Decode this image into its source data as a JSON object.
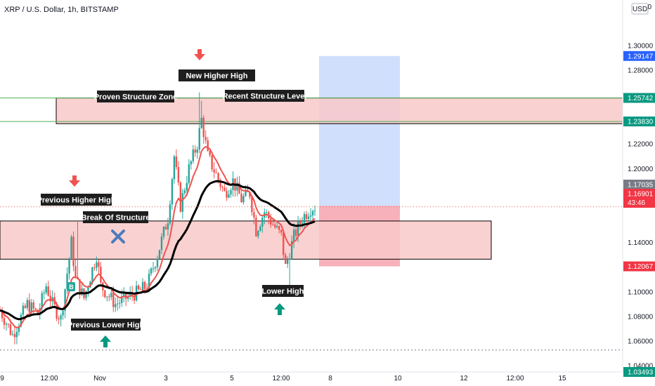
{
  "header": {
    "symbol_title": "XRP / U.S. Dollar, 1h, BITSTAMP",
    "currency_button": "USD",
    "corner_value": "0"
  },
  "colors": {
    "up": "#26a69a",
    "down": "#ef5350",
    "zone_fill": "#f9c9c9",
    "target_fill": "#c7d9fb",
    "stop_fill": "#f6a8b3",
    "ema": "#ef5350",
    "ma": "#000000",
    "label_bg": "#1e1e1e",
    "price_badge_blue": "#2962ff",
    "price_badge_green": "#089981",
    "price_badge_red": "#f23645",
    "price_badge_gray": "#787b86"
  },
  "chart_data": {
    "type": "candlestick",
    "x_ticks": [
      "9",
      "12:00",
      "Nov",
      "3",
      "5",
      "12:00",
      "8",
      "10",
      "12",
      "12:00",
      "15"
    ],
    "y_ticks": [
      "1.30000",
      "1.28000",
      "1.22000",
      "1.20000",
      "1.14000",
      "1.10000",
      "1.08000",
      "1.06000",
      "1.04000"
    ],
    "ylim": [
      1.025,
      1.335
    ],
    "price_badges": [
      {
        "value": "1.29147",
        "color": "blue"
      },
      {
        "value": "1.25742",
        "color": "green"
      },
      {
        "value": "1.23830",
        "color": "green"
      },
      {
        "value": "1.17035",
        "color": "gray"
      },
      {
        "value": "1.16901",
        "color": "red",
        "subtext": "43:46"
      },
      {
        "value": "1.12067",
        "color": "red"
      },
      {
        "value": "1.03493",
        "color": "green"
      }
    ],
    "zones": [
      {
        "name": "recent-structure-zone",
        "top": 1.2574,
        "bottom": 1.2365
      },
      {
        "name": "break-of-structure-zone",
        "top": 1.1575,
        "bottom": 1.1265
      }
    ],
    "position": {
      "target": 1.29147,
      "entry": 1.1698,
      "stop": 1.12067
    },
    "levels": [
      1.2574,
      1.2383,
      1.0527,
      1.03493
    ],
    "annotations": [
      "Proven Structure Zone",
      "Recent Structure Level",
      "New Higher High",
      "Previous Higher High",
      "Break Of Structure",
      "Previous Lower High",
      "Lower High"
    ],
    "anchors": [
      {
        "t": 0,
        "p": 1.085
      },
      {
        "t": 6,
        "p": 1.065
      },
      {
        "t": 13,
        "p": 1.09
      },
      {
        "t": 18,
        "p": 1.082
      },
      {
        "t": 22,
        "p": 1.105
      },
      {
        "t": 25,
        "p": 1.09
      },
      {
        "t": 29,
        "p": 1.078
      },
      {
        "t": 34,
        "p": 1.14
      },
      {
        "t": 36,
        "p": 1.11
      },
      {
        "t": 40,
        "p": 1.095
      },
      {
        "t": 46,
        "p": 1.13
      },
      {
        "t": 48,
        "p": 1.105
      },
      {
        "t": 55,
        "p": 1.09
      },
      {
        "t": 60,
        "p": 1.095
      },
      {
        "t": 66,
        "p": 1.1
      },
      {
        "t": 70,
        "p": 1.105
      },
      {
        "t": 75,
        "p": 1.13
      },
      {
        "t": 80,
        "p": 1.16
      },
      {
        "t": 83,
        "p": 1.21
      },
      {
        "t": 86,
        "p": 1.17
      },
      {
        "t": 90,
        "p": 1.2
      },
      {
        "t": 94,
        "p": 1.22
      },
      {
        "t": 96,
        "p": 1.24
      },
      {
        "t": 99,
        "p": 1.21
      },
      {
        "t": 103,
        "p": 1.195
      },
      {
        "t": 107,
        "p": 1.18
      },
      {
        "t": 111,
        "p": 1.19
      },
      {
        "t": 115,
        "p": 1.175
      },
      {
        "t": 119,
        "p": 1.18
      },
      {
        "t": 122,
        "p": 1.15
      },
      {
        "t": 126,
        "p": 1.165
      },
      {
        "t": 130,
        "p": 1.155
      },
      {
        "t": 134,
        "p": 1.145
      },
      {
        "t": 136,
        "p": 1.12
      },
      {
        "t": 140,
        "p": 1.145
      },
      {
        "t": 144,
        "p": 1.16
      },
      {
        "t": 148,
        "p": 1.168
      },
      {
        "t": 150,
        "p": 1.169
      }
    ]
  }
}
